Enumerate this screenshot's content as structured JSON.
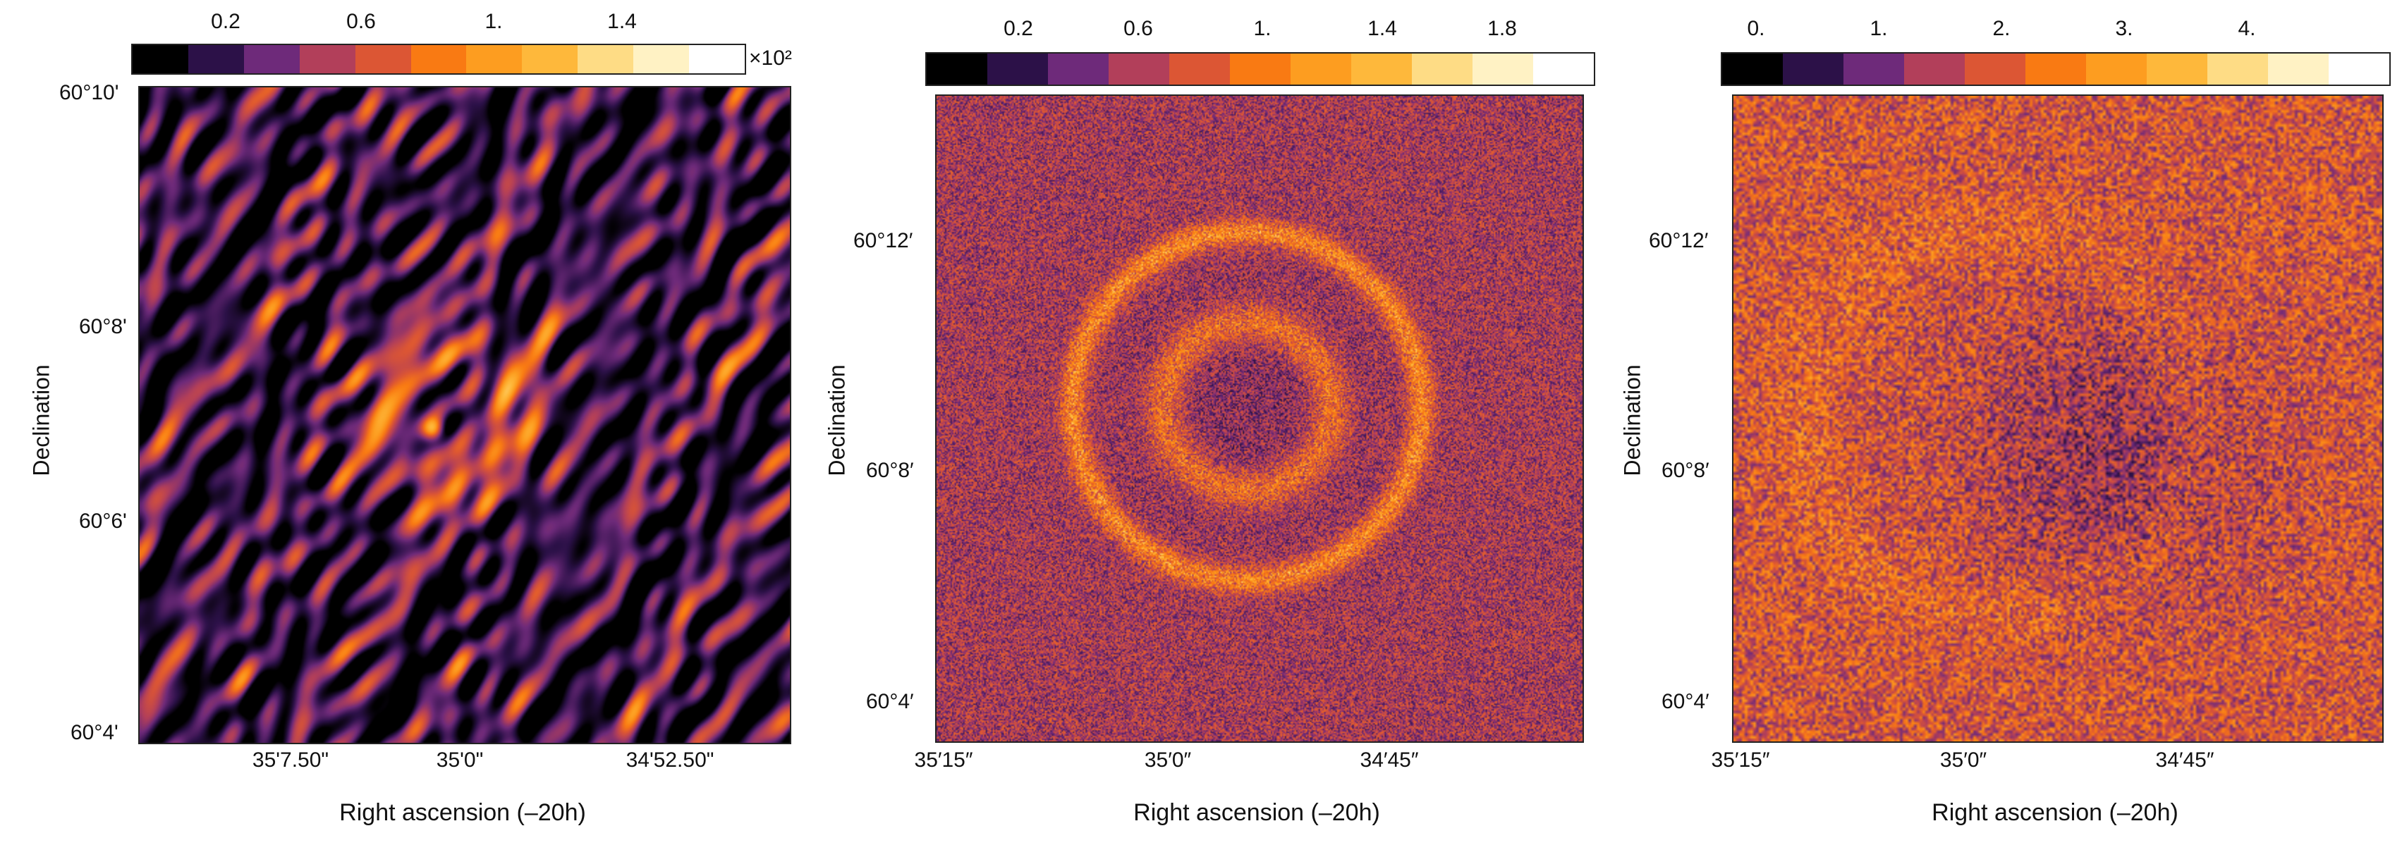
{
  "colors": {
    "colormap": [
      "#000000",
      "#2c1148",
      "#6e2a7a",
      "#b23f5a",
      "#dc5634",
      "#f97a13",
      "#fd9d20",
      "#feb83b",
      "#fedc85",
      "#fff2c4",
      "#ffffff"
    ]
  },
  "panels": [
    {
      "colorbar": {
        "ticks": [
          "0.2",
          "0.6",
          "1.",
          "1.4"
        ],
        "multiplier": "×10²"
      },
      "y_ticks": [
        "60°10'",
        "60°8'",
        "60°6'",
        "60°4'"
      ],
      "x_ticks": [
        "35'7.50\"",
        "35'0\"",
        "34'52.50\""
      ],
      "ylabel": "Declination",
      "xlabel": "Right ascension (–20h)",
      "style": "smooth"
    },
    {
      "colorbar": {
        "ticks": [
          "0.2",
          "0.6",
          "1.",
          "1.4",
          "1.8"
        ],
        "multiplier": ""
      },
      "y_ticks": [
        "60°12′",
        "60°8′",
        "60°4′"
      ],
      "x_ticks": [
        "35′15″",
        "35′0″",
        "34′45″"
      ],
      "ylabel": "Declination",
      "xlabel": "Right ascension (–20h)",
      "style": "noisy"
    },
    {
      "colorbar": {
        "ticks": [
          "0.",
          "1.",
          "2.",
          "3.",
          "4."
        ],
        "multiplier": ""
      },
      "y_ticks": [
        "60°12′",
        "60°8′",
        "60°4′"
      ],
      "x_ticks": [
        "35′15″",
        "35′0″",
        "34′45″"
      ],
      "ylabel": "Declination",
      "xlabel": "Right ascension (–20h)",
      "style": "speckle"
    }
  ]
}
